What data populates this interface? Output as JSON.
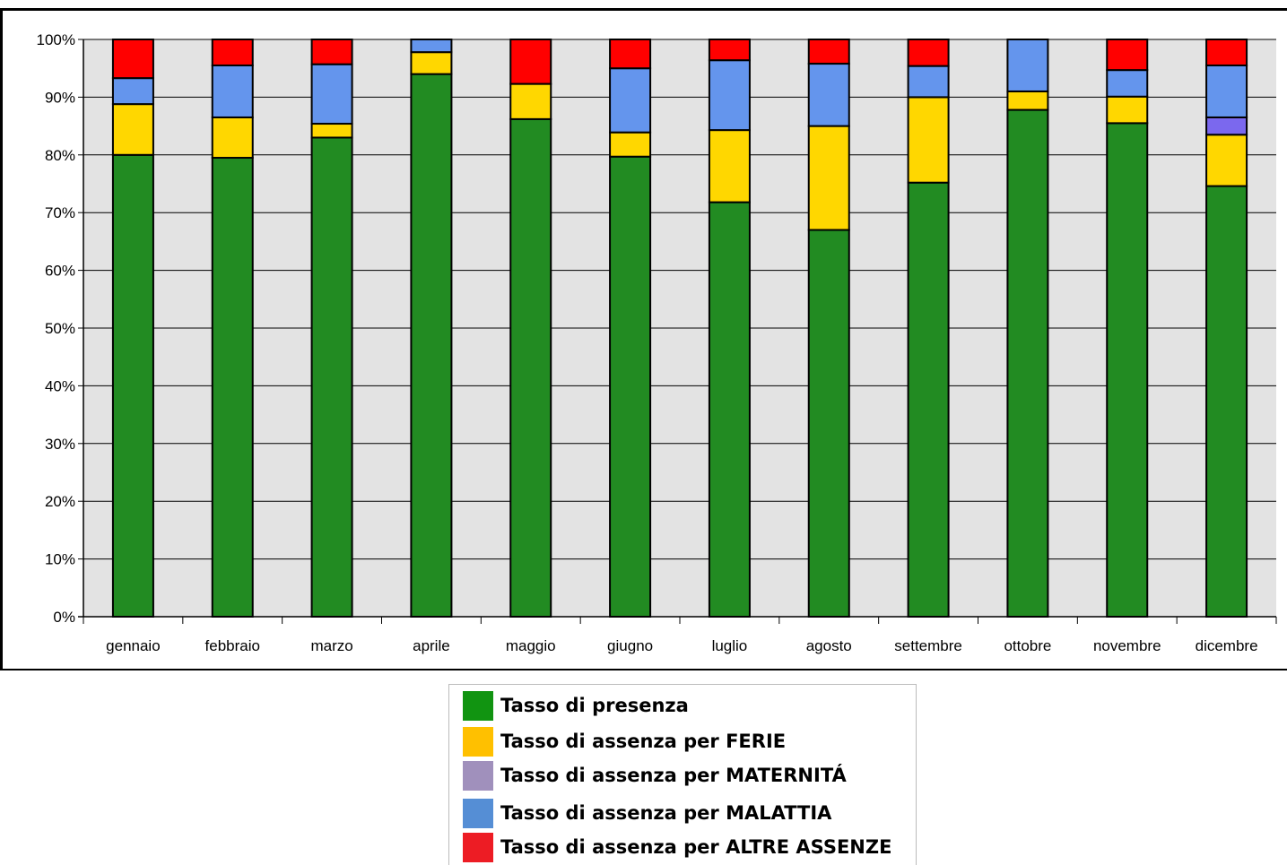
{
  "chart_data": {
    "type": "bar",
    "stacked": true,
    "categories": [
      "gennaio",
      "febbraio",
      "marzo",
      "aprile",
      "maggio",
      "giugno",
      "luglio",
      "agosto",
      "settembre",
      "ottobre",
      "novembre",
      "dicembre"
    ],
    "series": [
      {
        "name": "Tasso di presenza",
        "color": "#228b22",
        "values": [
          80.0,
          79.5,
          83.0,
          94.0,
          86.2,
          79.7,
          71.8,
          67.0,
          75.2,
          87.8,
          85.5,
          74.6
        ]
      },
      {
        "name": "Tasso di assenza per FERIE",
        "color": "#ffd700",
        "values": [
          8.8,
          7.0,
          2.4,
          3.8,
          6.1,
          4.2,
          12.5,
          18.0,
          14.8,
          3.2,
          4.6,
          8.9
        ]
      },
      {
        "name": "Tasso di assenza per MATERNITÁ",
        "color": "#7b68ee",
        "values": [
          0,
          0,
          0,
          0,
          0,
          0,
          0,
          0,
          0,
          0,
          0,
          3.0
        ]
      },
      {
        "name": "Tasso di assenza per MALATTIA",
        "color": "#6495ed",
        "values": [
          4.5,
          9.0,
          10.3,
          2.2,
          0,
          11.1,
          12.1,
          10.8,
          5.4,
          9.0,
          4.6,
          9.0
        ]
      },
      {
        "name": "Tasso di assenza per ALTRE ASSENZE",
        "color": "#ff0000",
        "values": [
          6.7,
          4.5,
          4.3,
          0,
          7.7,
          5.0,
          3.6,
          4.2,
          4.6,
          0,
          5.3,
          4.5
        ]
      }
    ],
    "y_ticks": [
      "0%",
      "10%",
      "20%",
      "30%",
      "40%",
      "50%",
      "60%",
      "70%",
      "80%",
      "90%",
      "100%"
    ],
    "ylim": [
      0,
      100
    ],
    "grid": true,
    "plot_background": "#e3e3e3",
    "legend_position": "bottom",
    "title": "",
    "xlabel": "",
    "ylabel": ""
  },
  "legend": {
    "items": [
      {
        "label": "Tasso di presenza",
        "swatch": "#119411"
      },
      {
        "label": "Tasso di assenza per FERIE",
        "swatch": "#ffc000"
      },
      {
        "label": "Tasso di assenza per MATERNITÁ",
        "swatch": "#a090bc"
      },
      {
        "label": "Tasso di assenza per MALATTIA",
        "swatch": "#558ed5"
      },
      {
        "label": "Tasso di assenza per ALTRE ASSENZE",
        "swatch": "#ed1c24"
      }
    ]
  }
}
